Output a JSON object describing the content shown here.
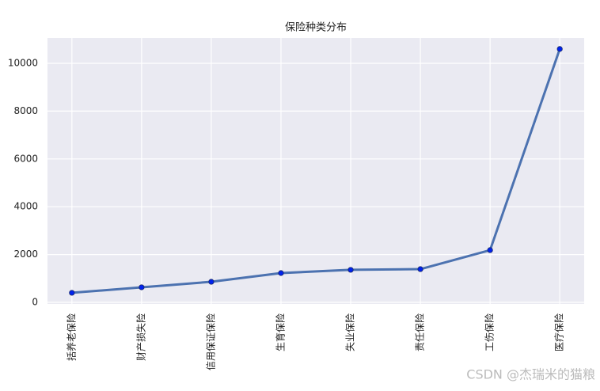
{
  "chart_data": {
    "type": "line",
    "title": "保险种类分布",
    "categories": [
      "括养老保险",
      "财产损失险",
      "信用保证保险",
      "生育保险",
      "失业保险",
      "责任保险",
      "工伤保险",
      "医疗保险"
    ],
    "values": [
      400,
      630,
      860,
      1225,
      1360,
      1390,
      2185,
      10600
    ],
    "color": "#4c72b0",
    "marker_color": "#0022ee",
    "ylim": [
      -66,
      11060
    ],
    "yticks": [
      0,
      2000,
      4000,
      6000,
      8000,
      10000
    ],
    "grid": true
  },
  "watermark": "CSDN @杰瑞米的猫粮"
}
